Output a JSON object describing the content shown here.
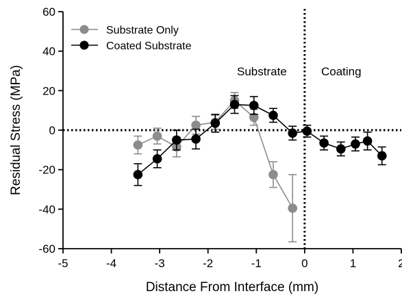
{
  "chart_data": {
    "type": "scatter",
    "title": "",
    "xlabel": "Distance From Interface (mm)",
    "ylabel": "Residual Stress (MPa)",
    "xlim": [
      -5,
      2
    ],
    "ylim": [
      -60,
      60
    ],
    "xticks": [
      -5,
      -4,
      -3,
      -2,
      -1,
      0,
      1,
      2
    ],
    "yticks": [
      -60,
      -40,
      -20,
      0,
      20,
      40,
      60
    ],
    "xtick_labels": [
      "-5",
      "-4",
      "-3",
      "-2",
      "-1",
      "0",
      "1",
      "2"
    ],
    "ytick_labels": [
      "-60",
      "-40",
      "-20",
      "0",
      "20",
      "40",
      "60"
    ],
    "grid": false,
    "legend_placement": "top-left",
    "reference_lines": {
      "horizontal_y": 0,
      "vertical_x": 0,
      "style": "dotted"
    },
    "annotations": [
      {
        "text": "Substrate",
        "x": -0.85,
        "y": 26
      },
      {
        "text": "Coating",
        "x": 0.8,
        "y": 26
      }
    ],
    "series": [
      {
        "name": "Substrate Only",
        "color": "#8c8c8c",
        "marker": "circle",
        "points": [
          {
            "x": -3.45,
            "y": -7.5,
            "err": 4.5
          },
          {
            "x": -3.05,
            "y": -3,
            "err": 4
          },
          {
            "x": -2.65,
            "y": -8.5,
            "err": 5
          },
          {
            "x": -2.25,
            "y": 2.5,
            "err": 4.5
          },
          {
            "x": -1.85,
            "y": 4,
            "err": 3.5
          },
          {
            "x": -1.45,
            "y": 15,
            "err": 4
          },
          {
            "x": -1.05,
            "y": 6.5,
            "err": 4
          },
          {
            "x": -0.65,
            "y": -22.5,
            "err": 6.5
          },
          {
            "x": -0.25,
            "y": -39.5,
            "err": 17
          }
        ]
      },
      {
        "name": "Coated Substrate",
        "color": "#000000",
        "marker": "circle",
        "points": [
          {
            "x": -3.45,
            "y": -22.5,
            "err": 5.5
          },
          {
            "x": -3.05,
            "y": -14.5,
            "err": 4.5
          },
          {
            "x": -2.65,
            "y": -5,
            "err": 5
          },
          {
            "x": -2.25,
            "y": -4.5,
            "err": 5
          },
          {
            "x": -1.85,
            "y": 3.5,
            "err": 4.5
          },
          {
            "x": -1.45,
            "y": 13,
            "err": 4.5
          },
          {
            "x": -1.05,
            "y": 12.5,
            "err": 4.5
          },
          {
            "x": -0.65,
            "y": 7.5,
            "err": 3.5
          },
          {
            "x": -0.25,
            "y": -1.5,
            "err": 3.5
          },
          {
            "x": 0.05,
            "y": -0.5,
            "err": 3
          },
          {
            "x": 0.4,
            "y": -6.5,
            "err": 3.5
          },
          {
            "x": 0.75,
            "y": -9.5,
            "err": 3.5
          },
          {
            "x": 1.05,
            "y": -7,
            "err": 3.5
          },
          {
            "x": 1.3,
            "y": -5.5,
            "err": 4.5
          },
          {
            "x": 1.6,
            "y": -13,
            "err": 4.5
          }
        ]
      }
    ]
  }
}
